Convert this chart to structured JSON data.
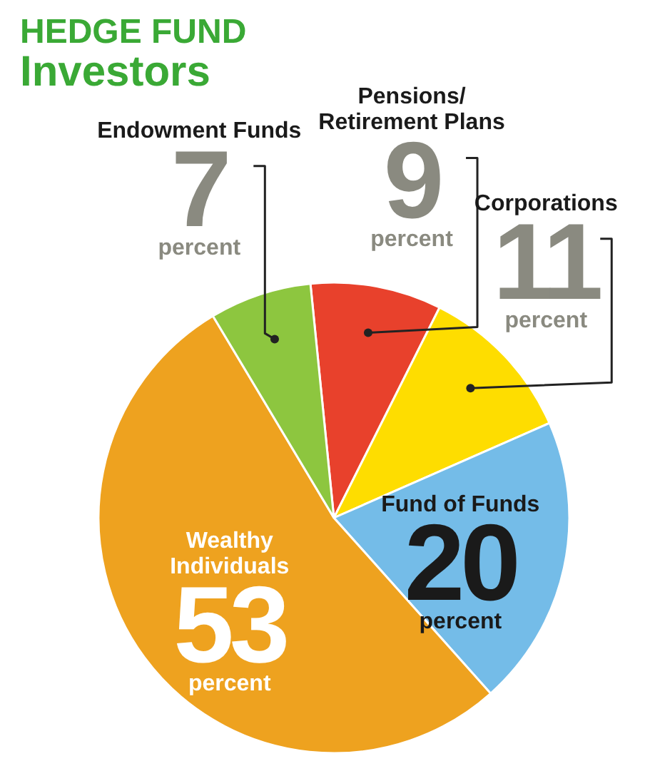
{
  "chart_data": {
    "type": "pie",
    "title": "HEDGE FUND",
    "subtitle": "Investors",
    "categories": [
      "Pensions/ Retirement Plans",
      "Corporations",
      "Fund of Funds",
      "Wealthy Individuals",
      "Endowment Funds"
    ],
    "values": [
      9,
      11,
      20,
      53,
      7
    ],
    "colors": [
      "#e8412c",
      "#fedd00",
      "#74bce8",
      "#eea21f",
      "#8dc63f"
    ],
    "value_labels": [
      "9 percent",
      "11 percent",
      "20 percent",
      "53 percent",
      "7 percent"
    ]
  }
}
